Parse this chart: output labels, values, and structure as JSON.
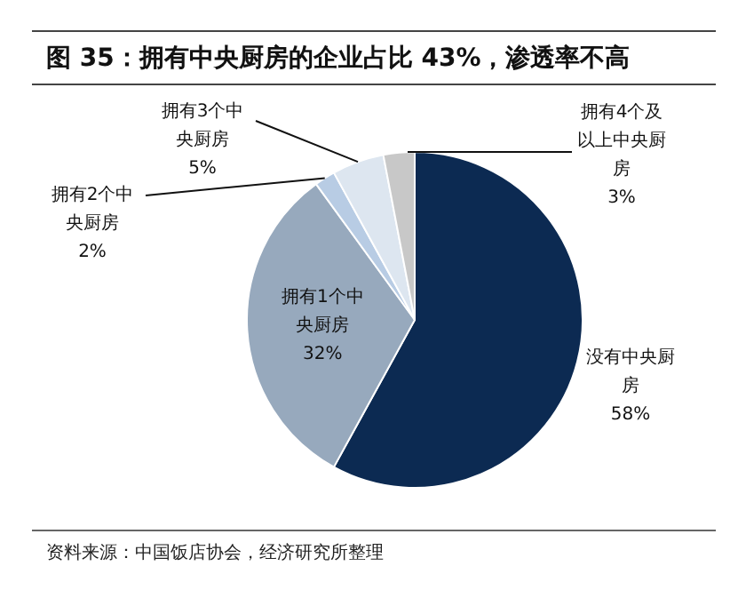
{
  "chart_data": {
    "type": "pie",
    "title": "图 35：拥有中央厨房的企业占比 43%，渗透率不高",
    "categories": [
      "没有中央厨房",
      "拥有1个中央厨房",
      "拥有2个中央厨房",
      "拥有3个中央厨房",
      "拥有4个及以上中央厨房"
    ],
    "values": [
      58,
      32,
      2,
      5,
      3
    ],
    "value_labels": [
      "58%",
      "32%",
      "2%",
      "5%",
      "3%"
    ],
    "colors": [
      "#0c2a52",
      "#97a9bd",
      "#b8cce4",
      "#dde6f0",
      "#c8c8c8"
    ],
    "legend": false,
    "annotations": [
      "资料来源：中国饭店协会，经济研究所整理"
    ]
  }
}
